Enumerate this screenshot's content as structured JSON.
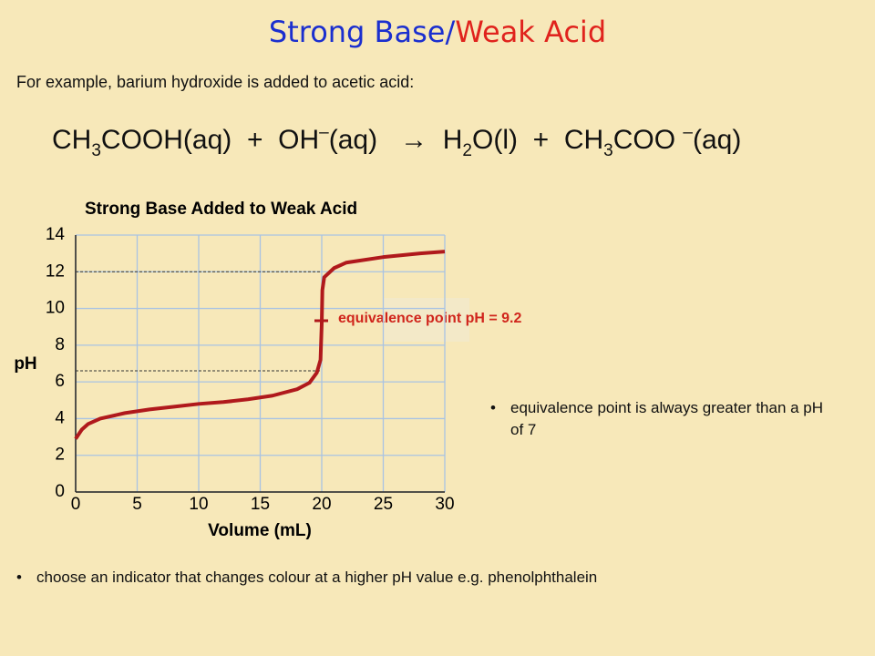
{
  "slide": {
    "title_parts": [
      "Strong Base",
      "/",
      "Weak Acid"
    ],
    "intro": "For example, barium hydroxide is added to acetic acid:",
    "equation": [
      "CH",
      "3",
      "COOH(aq)  +  OH",
      "–",
      "(aq)   →  H",
      "2",
      "O(l)  +  CH",
      "3",
      "COO ",
      "–",
      "(aq)"
    ],
    "bullets": [
      "equivalence point is always greater than a pH of 7",
      "choose an indicator that changes colour at a higher pH value e.g. phenolphthalein"
    ]
  },
  "chart_data": {
    "type": "line",
    "title": "Strong Base Added to Weak Acid",
    "x_label": "Volume (mL)",
    "y_label": "pH",
    "annotation": "equivalence point pH = 9.2",
    "x": [
      0,
      0.5,
      1,
      2,
      4,
      6,
      8,
      10,
      12,
      14,
      16,
      18,
      19,
      19.6,
      19.9,
      20,
      20.05,
      20.2,
      21,
      22,
      25,
      28,
      30
    ],
    "values": [
      2.9,
      3.4,
      3.7,
      4.0,
      4.3,
      4.5,
      4.65,
      4.8,
      4.9,
      5.05,
      5.25,
      5.6,
      5.95,
      6.5,
      7.2,
      9.2,
      11.0,
      11.7,
      12.2,
      12.5,
      12.8,
      13.0,
      13.1
    ],
    "color": "#b0191c",
    "hlines": [
      12,
      6.6
    ],
    "xlim": [
      0,
      30
    ],
    "ylim": [
      0,
      14
    ],
    "xticks": [
      0,
      5,
      10,
      15,
      20,
      25,
      30
    ],
    "yticks": [
      0,
      2,
      4,
      6,
      8,
      10,
      12,
      14
    ],
    "grid": true
  }
}
